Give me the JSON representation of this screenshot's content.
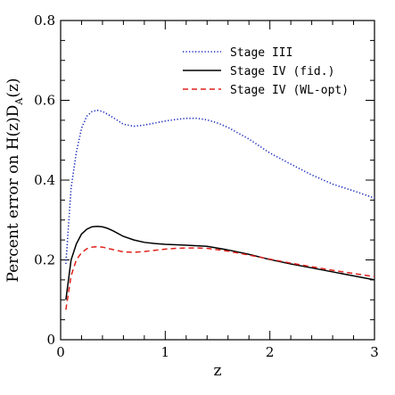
{
  "chart_data": {
    "type": "line",
    "xlabel": "z",
    "ylabel_parts": {
      "main": "Percent error on H(z)D",
      "subscript": "A",
      "tail": "(z)"
    },
    "xlim": [
      0,
      3
    ],
    "ylim": [
      0,
      0.8
    ],
    "x_ticks": [
      0,
      1,
      2,
      3
    ],
    "x_tick_labels": [
      "0",
      "1",
      "2",
      "3"
    ],
    "y_ticks": [
      0,
      0.2,
      0.4,
      0.6,
      0.8
    ],
    "y_tick_labels": [
      "0",
      "0.2",
      "0.4",
      "0.6",
      "0.8"
    ],
    "legend_position": "top-right",
    "series": [
      {
        "name": "Stage III",
        "color": "#1f2fbf",
        "style": "dotted",
        "x": [
          0.05,
          0.1,
          0.15,
          0.2,
          0.25,
          0.3,
          0.35,
          0.4,
          0.45,
          0.5,
          0.6,
          0.7,
          0.8,
          0.9,
          1.0,
          1.1,
          1.2,
          1.3,
          1.4,
          1.5,
          1.6,
          1.8,
          2.0,
          2.2,
          2.4,
          2.6,
          2.8,
          3.0
        ],
        "y": [
          0.19,
          0.38,
          0.47,
          0.53,
          0.56,
          0.572,
          0.575,
          0.572,
          0.565,
          0.557,
          0.54,
          0.535,
          0.538,
          0.543,
          0.548,
          0.552,
          0.555,
          0.555,
          0.551,
          0.543,
          0.532,
          0.503,
          0.468,
          0.44,
          0.413,
          0.39,
          0.373,
          0.355
        ]
      },
      {
        "name": "Stage IV (fid.)",
        "color": "#000000",
        "style": "solid",
        "x": [
          0.05,
          0.1,
          0.15,
          0.2,
          0.25,
          0.3,
          0.35,
          0.4,
          0.45,
          0.5,
          0.6,
          0.7,
          0.8,
          0.9,
          1.0,
          1.2,
          1.4,
          1.6,
          1.8,
          2.0,
          2.2,
          2.4,
          2.6,
          2.8,
          3.0
        ],
        "y": [
          0.1,
          0.2,
          0.24,
          0.265,
          0.277,
          0.283,
          0.284,
          0.283,
          0.279,
          0.273,
          0.259,
          0.25,
          0.244,
          0.241,
          0.239,
          0.237,
          0.234,
          0.225,
          0.214,
          0.201,
          0.19,
          0.18,
          0.17,
          0.16,
          0.15
        ]
      },
      {
        "name": "Stage IV (WL-opt)",
        "color": "#e0201b",
        "style": "dashed",
        "x": [
          0.05,
          0.1,
          0.15,
          0.2,
          0.25,
          0.3,
          0.35,
          0.4,
          0.45,
          0.5,
          0.6,
          0.7,
          0.8,
          0.9,
          1.0,
          1.1,
          1.2,
          1.3,
          1.4,
          1.6,
          1.8,
          2.0,
          2.2,
          2.4,
          2.6,
          2.8,
          3.0
        ],
        "y": [
          0.075,
          0.16,
          0.2,
          0.218,
          0.228,
          0.232,
          0.233,
          0.232,
          0.229,
          0.226,
          0.22,
          0.219,
          0.221,
          0.224,
          0.227,
          0.229,
          0.23,
          0.23,
          0.229,
          0.222,
          0.212,
          0.202,
          0.192,
          0.183,
          0.174,
          0.166,
          0.158
        ]
      }
    ]
  }
}
